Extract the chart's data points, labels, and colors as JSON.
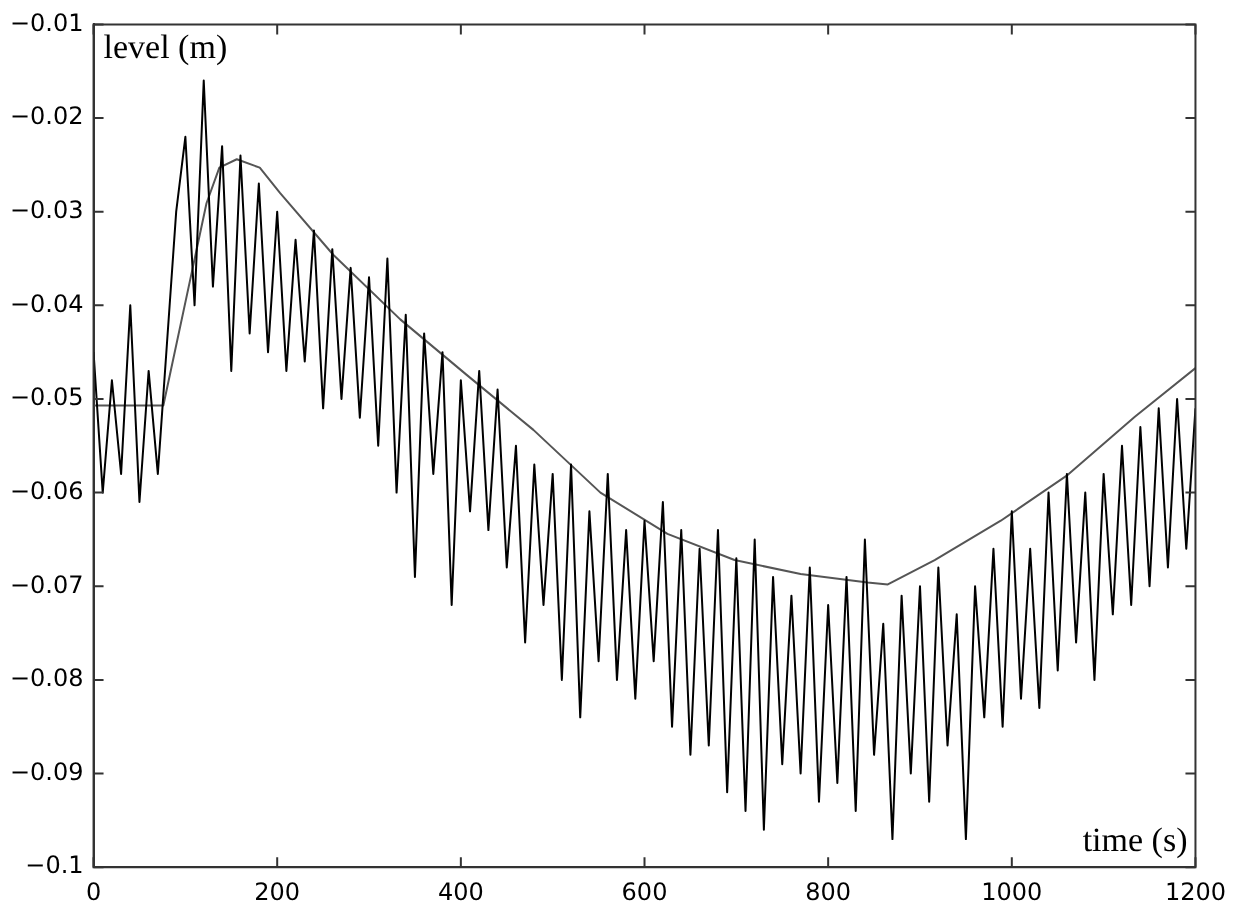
{
  "chart_data": {
    "type": "line",
    "xlabel": "time (s)",
    "ylabel": "level (m)",
    "xlim": [
      0,
      1200
    ],
    "xticks": [
      0,
      200,
      400,
      600,
      800,
      1000,
      1200
    ],
    "ylim": [
      -0.1,
      -0.01
    ],
    "yticks": [
      -0.1,
      -0.09,
      -0.08,
      -0.07,
      -0.06,
      -0.05,
      -0.04,
      -0.03,
      -0.02,
      -0.01
    ],
    "marker": "none",
    "line_style": "solid",
    "legend": false,
    "series": [
      {
        "color": "#000000",
        "x": [
          0,
          10,
          20,
          30,
          40,
          50,
          60,
          70,
          80,
          90,
          100,
          110,
          120,
          130,
          140,
          150,
          160,
          170,
          180,
          190,
          200,
          210,
          220,
          230,
          240,
          250,
          260,
          270,
          280,
          290,
          300,
          310,
          320,
          330,
          340,
          350,
          360,
          370,
          380,
          390,
          400,
          410,
          420,
          430,
          440,
          450,
          460,
          470,
          480,
          490,
          500,
          510,
          520,
          530,
          540,
          550,
          560,
          570,
          580,
          590,
          600,
          610,
          620,
          630,
          640,
          650,
          660,
          670,
          680,
          690,
          700,
          710,
          720,
          730,
          740,
          750,
          760,
          770,
          780,
          790,
          800,
          810,
          820,
          830,
          840,
          850,
          860,
          870,
          880,
          890,
          900,
          910,
          920,
          930,
          940,
          950,
          960,
          970,
          980,
          990,
          1000,
          1010,
          1020,
          1030,
          1040,
          1050,
          1060,
          1070,
          1080,
          1090,
          1100,
          1110,
          1120,
          1130,
          1140,
          1150,
          1160,
          1170,
          1180,
          1190,
          1200
        ],
        "values": [
          -0.045,
          -0.06,
          -0.048,
          -0.058,
          -0.04,
          -0.061,
          -0.047,
          -0.058,
          -0.044,
          -0.03,
          -0.022,
          -0.04,
          -0.016,
          -0.038,
          -0.023,
          -0.047,
          -0.024,
          -0.043,
          -0.027,
          -0.045,
          -0.03,
          -0.047,
          -0.033,
          -0.046,
          -0.032,
          -0.051,
          -0.034,
          -0.05,
          -0.036,
          -0.052,
          -0.037,
          -0.055,
          -0.035,
          -0.06,
          -0.041,
          -0.069,
          -0.043,
          -0.058,
          -0.045,
          -0.072,
          -0.048,
          -0.062,
          -0.047,
          -0.064,
          -0.049,
          -0.068,
          -0.055,
          -0.076,
          -0.057,
          -0.072,
          -0.058,
          -0.08,
          -0.057,
          -0.084,
          -0.062,
          -0.078,
          -0.058,
          -0.08,
          -0.064,
          -0.082,
          -0.063,
          -0.078,
          -0.061,
          -0.085,
          -0.064,
          -0.088,
          -0.066,
          -0.087,
          -0.064,
          -0.092,
          -0.067,
          -0.094,
          -0.065,
          -0.096,
          -0.069,
          -0.089,
          -0.071,
          -0.09,
          -0.068,
          -0.093,
          -0.072,
          -0.091,
          -0.069,
          -0.094,
          -0.065,
          -0.088,
          -0.074,
          -0.097,
          -0.071,
          -0.09,
          -0.07,
          -0.093,
          -0.068,
          -0.087,
          -0.073,
          -0.097,
          -0.07,
          -0.084,
          -0.066,
          -0.085,
          -0.062,
          -0.082,
          -0.066,
          -0.083,
          -0.06,
          -0.079,
          -0.058,
          -0.076,
          -0.06,
          -0.08,
          -0.058,
          -0.073,
          -0.055,
          -0.072,
          -0.053,
          -0.07,
          -0.051,
          -0.068,
          -0.05,
          -0.066,
          -0.051
        ]
      },
      {
        "color": "#555555",
        "x": [
          0,
          76,
          108,
          123,
          137,
          156,
          181,
          203,
          261,
          334,
          406,
          479,
          552,
          625,
          698,
          770,
          843,
          865,
          916,
          988,
          1061,
          1134,
          1200
        ],
        "values": [
          -0.0507,
          -0.0507,
          -0.036,
          -0.0291,
          -0.0253,
          -0.0244,
          -0.0253,
          -0.028,
          -0.0346,
          -0.0415,
          -0.0474,
          -0.0533,
          -0.06,
          -0.0644,
          -0.0672,
          -0.0687,
          -0.0696,
          -0.0698,
          -0.0672,
          -0.063,
          -0.0581,
          -0.0519,
          -0.0467
        ]
      }
    ]
  }
}
